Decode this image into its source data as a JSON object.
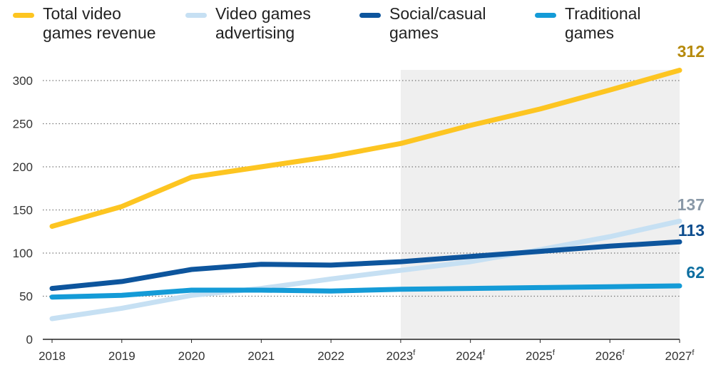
{
  "colors": {
    "total": "#fdc521",
    "advertising": "#c6e0f3",
    "social": "#0d559d",
    "traditional": "#149bd7",
    "forecast_shade": "#efefef",
    "grid": "#777777",
    "label_total": "#b68a0c",
    "label_advertising": "#8a99a8",
    "label_social": "#0d4d8e",
    "label_traditional": "#0d6ea0"
  },
  "legend": [
    {
      "key": "total",
      "label": "Total video games revenue"
    },
    {
      "key": "advertising",
      "label": "Video games advertising"
    },
    {
      "key": "social",
      "label": "Social/casual games"
    },
    {
      "key": "traditional",
      "label": "Traditional games"
    }
  ],
  "chart_data": {
    "type": "line",
    "categories": [
      "2018",
      "2019",
      "2020",
      "2021",
      "2022",
      "2023",
      "2024",
      "2025",
      "2026",
      "2027"
    ],
    "forecast_suffix": "f",
    "forecast_from_index": 5,
    "ylim": [
      0,
      300
    ],
    "yticks": [
      0,
      50,
      100,
      150,
      200,
      250,
      300
    ],
    "grid": "horizontal dotted",
    "legend_position": "top",
    "series": [
      {
        "key": "total",
        "name": "Total video games revenue",
        "values": [
          131,
          154,
          188,
          200,
          212,
          227,
          248,
          267,
          289,
          312
        ],
        "end_label": "312"
      },
      {
        "key": "advertising",
        "name": "Video games advertising",
        "values": [
          24,
          36,
          51,
          59,
          70,
          80,
          90,
          104,
          119,
          137
        ],
        "end_label": "137"
      },
      {
        "key": "social",
        "name": "Social/casual games",
        "values": [
          59,
          67,
          81,
          87,
          86,
          90,
          96,
          102,
          108,
          113
        ],
        "end_label": "113"
      },
      {
        "key": "traditional",
        "name": "Traditional games",
        "values": [
          49,
          51,
          57,
          57,
          56,
          58,
          59,
          60,
          61,
          62
        ],
        "end_label": "62"
      }
    ]
  }
}
